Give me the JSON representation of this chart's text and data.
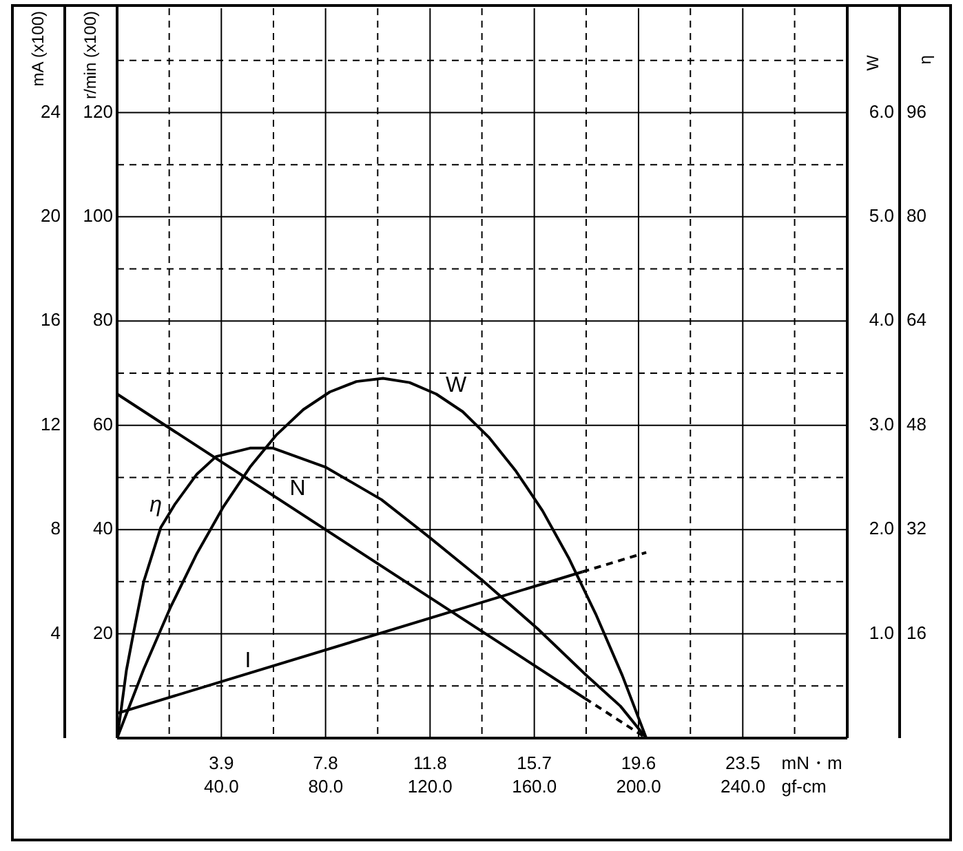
{
  "chart_data": [
    {
      "type": "line",
      "xlabel": "mN・m",
      "x2label": "gf-cm",
      "ylabel": "r/min (x100)",
      "y3label": "mA (x100)",
      "y2label": "W",
      "xlim": [
        0,
        27.46
      ],
      "xticks": [
        {
          "value": 3.92,
          "label": "3.9"
        },
        {
          "value": 7.84,
          "label": "7.8"
        },
        {
          "value": 11.77,
          "label": "11.8"
        },
        {
          "value": 15.69,
          "label": "15.7"
        },
        {
          "value": 19.61,
          "label": "19.6"
        },
        {
          "value": 23.53,
          "label": "23.5"
        }
      ],
      "x2lim": [
        0,
        280
      ],
      "x2ticks": [
        {
          "value": 40,
          "label": "40.0"
        },
        {
          "value": 80,
          "label": "80.0"
        },
        {
          "value": 120,
          "label": "120.0"
        },
        {
          "value": 160,
          "label": "160.0"
        },
        {
          "value": 200,
          "label": "200.0"
        },
        {
          "value": 240,
          "label": "240.0"
        }
      ],
      "ylim": [
        0,
        140
      ],
      "yticks": [
        20,
        40,
        60,
        80,
        100,
        120
      ],
      "y3lim": [
        0,
        28
      ],
      "y3ticks": [
        4,
        8,
        12,
        16,
        20,
        24
      ],
      "y2lim": [
        0,
        7
      ],
      "y2ticks": [
        {
          "value": 1,
          "label": "1.0"
        },
        {
          "value": 2,
          "label": "2.0"
        },
        {
          "value": 3,
          "label": "3.0"
        },
        {
          "value": 4,
          "label": "4.0"
        },
        {
          "value": 5,
          "label": "5.0"
        },
        {
          "value": 6,
          "label": "6.0"
        }
      ],
      "grid": true,
      "series": [
        {
          "name": "N",
          "color": "#000000",
          "x": [
            0,
            17.6
          ],
          "values": [
            66,
            7.6
          ]
        },
        {
          "color": "#000000",
          "line_style": "dashed",
          "x": [
            17.6,
            19.9
          ],
          "values": [
            7.6,
            0
          ]
        },
        {
          "name": "I",
          "color": "#000000",
          "axis": "y3",
          "x": [
            0,
            17.5
          ],
          "values": [
            0.95,
            6.38
          ]
        },
        {
          "color": "#000000",
          "axis": "y3",
          "line_style": "dashed",
          "x": [
            17.5,
            19.9
          ],
          "values": [
            6.38,
            7.12
          ]
        },
        {
          "name": "W",
          "color": "#000000",
          "axis": "y2",
          "x": [
            0,
            1,
            2,
            3,
            4,
            5,
            6,
            7,
            8,
            9,
            10,
            11,
            12,
            13,
            14,
            15,
            16,
            17,
            18,
            19,
            19.9
          ],
          "values": [
            0,
            0.66,
            1.25,
            1.77,
            2.22,
            2.6,
            2.91,
            3.15,
            3.32,
            3.42,
            3.45,
            3.41,
            3.3,
            3.13,
            2.88,
            2.56,
            2.18,
            1.72,
            1.19,
            0.6,
            0
          ]
        }
      ]
    },
    {
      "type": "line",
      "ylabel": "η",
      "tick_labels": "y",
      "xlim": [
        0,
        27.46
      ],
      "ylim": [
        0,
        112
      ],
      "yticks": [
        16,
        32,
        48,
        64,
        80,
        96
      ],
      "series": [
        {
          "name": "η",
          "color": "#000000",
          "x": [
            0,
            0.17,
            0.35,
            0.61,
            1.0,
            1.64,
            2.16,
            3.0,
            3.72,
            5.0,
            5.86,
            7.83,
            9.94,
            11.72,
            13.74,
            15.81,
            17.63,
            18.93,
            19.9
          ],
          "values": [
            0,
            4.9,
            10.4,
            16,
            24,
            32.3,
            35.8,
            40.5,
            43.2,
            44.5,
            44.5,
            41.6,
            36.6,
            30.9,
            24.2,
            16.8,
            9.7,
            4.9,
            0
          ]
        }
      ]
    }
  ]
}
